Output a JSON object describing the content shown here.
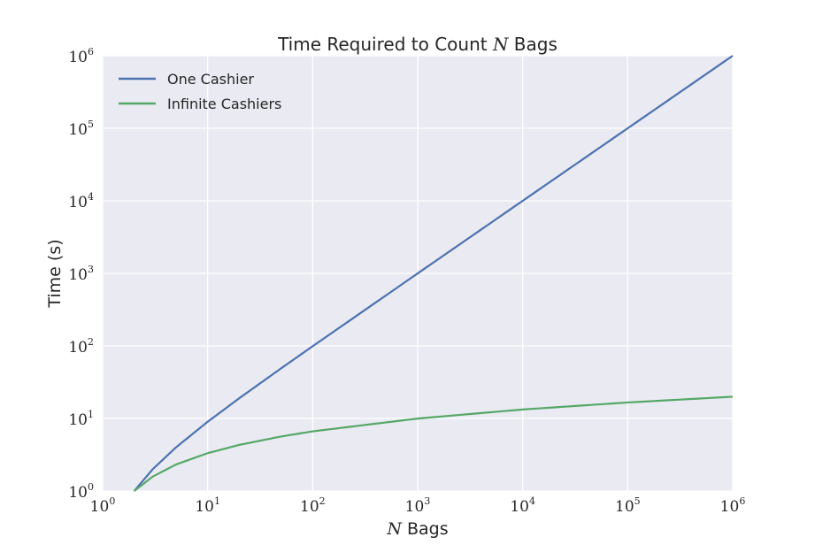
{
  "chart_data": {
    "type": "line",
    "title": {
      "prefix": "Time Required to Count ",
      "var": "N",
      "suffix": " Bags"
    },
    "xlabel": {
      "var": "N",
      "suffix": " Bags"
    },
    "ylabel": "Time (s)",
    "xscale": "log",
    "yscale": "log",
    "xlim": [
      1,
      1000000
    ],
    "ylim": [
      1,
      1000000
    ],
    "x_ticks": [
      {
        "base": "10",
        "exp": "0"
      },
      {
        "base": "10",
        "exp": "1"
      },
      {
        "base": "10",
        "exp": "2"
      },
      {
        "base": "10",
        "exp": "3"
      },
      {
        "base": "10",
        "exp": "4"
      },
      {
        "base": "10",
        "exp": "5"
      },
      {
        "base": "10",
        "exp": "6"
      }
    ],
    "y_ticks": [
      {
        "base": "10",
        "exp": "0"
      },
      {
        "base": "10",
        "exp": "1"
      },
      {
        "base": "10",
        "exp": "2"
      },
      {
        "base": "10",
        "exp": "3"
      },
      {
        "base": "10",
        "exp": "4"
      },
      {
        "base": "10",
        "exp": "5"
      },
      {
        "base": "10",
        "exp": "6"
      }
    ],
    "grid": true,
    "legend_position": "top-left",
    "series": [
      {
        "name": "One Cashier",
        "color": "#4c72b0",
        "x": [
          2,
          3,
          5,
          10,
          20,
          50,
          100,
          1000,
          10000,
          100000,
          1000000
        ],
        "y": [
          1,
          2,
          4,
          9,
          19,
          49,
          99,
          999,
          9999,
          99999,
          999999
        ]
      },
      {
        "name": "Infinite Cashiers",
        "color": "#55a868",
        "x": [
          2,
          3,
          5,
          10,
          20,
          50,
          100,
          1000,
          10000,
          100000,
          1000000
        ],
        "y": [
          1,
          1.58,
          2.32,
          3.32,
          4.32,
          5.64,
          6.64,
          9.97,
          13.29,
          16.61,
          19.93
        ]
      }
    ],
    "plot_background": "#eaeaf2",
    "grid_color": "#ffffff"
  }
}
